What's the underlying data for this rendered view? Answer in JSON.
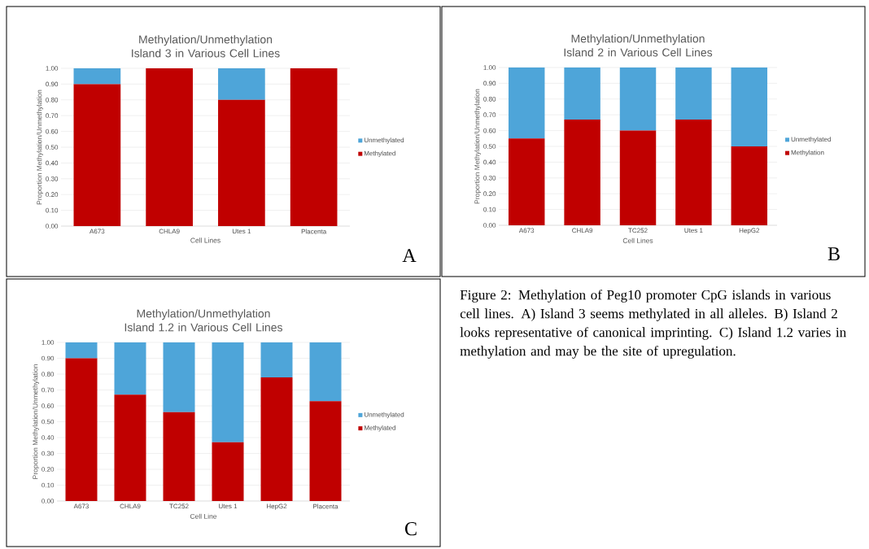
{
  "chart_data": [
    {
      "type": "bar",
      "stacked": true,
      "title": "Methylation/Unmethylation Island 3 in Various Cell Lines",
      "xlabel": "Cell Lines",
      "ylabel": "Proportion Methylation/Unmethylation",
      "categories": [
        "A673",
        "CHLA9",
        "Utes 1",
        "Placenta"
      ],
      "series": [
        {
          "name": "Methylated",
          "color": "#c00000",
          "values": [
            0.9,
            1.0,
            0.8,
            1.0
          ]
        },
        {
          "name": "Unmethylated",
          "color": "#4ea5d9",
          "values": [
            0.1,
            0.0,
            0.2,
            0.0
          ]
        }
      ],
      "ylim": [
        0,
        1
      ],
      "yticks": [
        {
          "value": 0,
          "label": "0.00"
        },
        {
          "value": 0.1,
          "label": "0.10"
        },
        {
          "value": 0.2,
          "label": "0.20"
        },
        {
          "value": 0.3,
          "label": "0.30"
        },
        {
          "value": 0.4,
          "label": "0.40"
        },
        {
          "value": 0.5,
          "label": "0.50"
        },
        {
          "value": 0.6,
          "label": "0.60"
        },
        {
          "value": 0.7,
          "label": "0.70"
        },
        {
          "value": 0.8,
          "label": "0.80"
        },
        {
          "value": 0.9,
          "label": "0.90"
        },
        {
          "value": 1,
          "label": "1.00"
        }
      ],
      "grid": "y",
      "legend": "right",
      "annotations": [
        "A"
      ]
    },
    {
      "type": "bar",
      "stacked": true,
      "title": "Methylation/Unmethylation Island 2 in Various Cell Lines",
      "xlabel": "Cell Lines",
      "ylabel": "Proportion Methylation/Unmethylation",
      "categories": [
        "A673",
        "CHLA9",
        "TC252",
        "Utes 1",
        "HepG2"
      ],
      "series": [
        {
          "name": "Methylation",
          "color": "#c00000",
          "values": [
            0.55,
            0.67,
            0.6,
            0.67,
            0.5
          ]
        },
        {
          "name": "Unmethylated",
          "color": "#4ea5d9",
          "values": [
            0.45,
            0.33,
            0.4,
            0.33,
            0.5
          ]
        }
      ],
      "ylim": [
        0,
        1
      ],
      "yticks": [
        {
          "value": 0,
          "label": "0.00"
        },
        {
          "value": 0.1,
          "label": "0.10"
        },
        {
          "value": 0.2,
          "label": "0.20"
        },
        {
          "value": 0.3,
          "label": "0.30"
        },
        {
          "value": 0.4,
          "label": "0.40"
        },
        {
          "value": 0.5,
          "label": "0.50"
        },
        {
          "value": 0.6,
          "label": "0.60"
        },
        {
          "value": 0.7,
          "label": "0.70"
        },
        {
          "value": 0.8,
          "label": "0.80"
        },
        {
          "value": 0.9,
          "label": "0.90"
        },
        {
          "value": 1,
          "label": "1.00"
        }
      ],
      "grid": "y",
      "legend": "right",
      "annotations": [
        "B"
      ]
    },
    {
      "type": "bar",
      "stacked": true,
      "title": "Methylation/Unmethylation Island 1.2 in Various Cell Lines",
      "xlabel": "Cell Line",
      "ylabel": "Proportion Methylation/Unmethylation",
      "categories": [
        "A673",
        "CHLA9",
        "TC252",
        "Utes 1",
        "HepG2",
        "Placenta"
      ],
      "series": [
        {
          "name": "Methylated",
          "color": "#c00000",
          "values": [
            0.9,
            0.67,
            0.56,
            0.37,
            0.78,
            0.63
          ]
        },
        {
          "name": "Unmethylated",
          "color": "#4ea5d9",
          "values": [
            0.1,
            0.33,
            0.44,
            0.63,
            0.22,
            0.37
          ]
        }
      ],
      "ylim": [
        0,
        1
      ],
      "yticks": [
        {
          "value": 0,
          "label": "0.00"
        },
        {
          "value": 0.1,
          "label": "0.10"
        },
        {
          "value": 0.2,
          "label": "0.20"
        },
        {
          "value": 0.3,
          "label": "0.30"
        },
        {
          "value": 0.4,
          "label": "0.40"
        },
        {
          "value": 0.5,
          "label": "0.50"
        },
        {
          "value": 0.6,
          "label": "0.60"
        },
        {
          "value": 0.7,
          "label": "0.70"
        },
        {
          "value": 0.8,
          "label": "0.80"
        },
        {
          "value": 0.9,
          "label": "0.90"
        },
        {
          "value": 1,
          "label": "1.00"
        }
      ],
      "grid": "y",
      "legend": "right",
      "annotations": [
        "C"
      ]
    },
    {
      "type": "other",
      "annotations": [
        "Figure 2: Methylation of Peg10 promoter CpG islands in various cell lines. A) Island 3 seems methylated in all alleles. B) Island 2 looks representative of canonical imprinting. C) Island 1.2 varies in methylation and may be the site of upregulation."
      ]
    }
  ]
}
